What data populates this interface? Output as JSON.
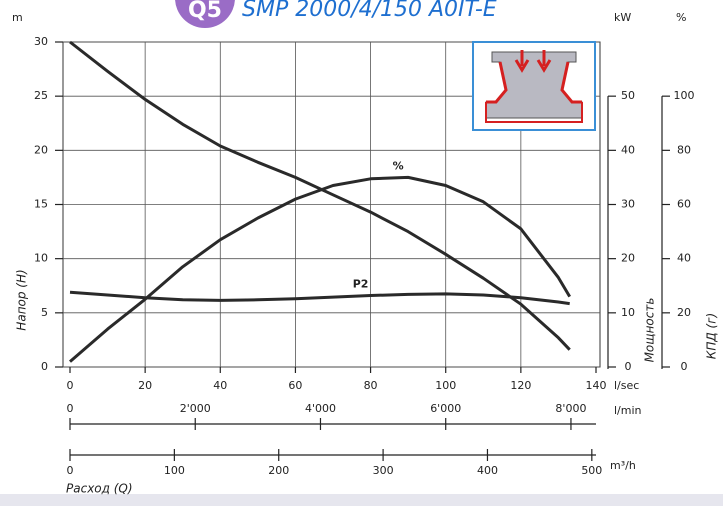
{
  "badge": "Q5",
  "chart_data": {
    "type": "line",
    "title": "SMP 2000/4/150 A0IT-E",
    "y_unit": "m",
    "y2_unit": "kW",
    "y3_unit": "%",
    "ylabel": "Напор (H)",
    "y2label": "Мощность",
    "y3label": "КПД (г)",
    "xlabel": "Расход (Q)",
    "x_unit": "l/sec",
    "x2_unit": "l/min",
    "x3_unit": "m³/h",
    "x": [
      0,
      10,
      20,
      30,
      40,
      50,
      60,
      70,
      80,
      90,
      100,
      110,
      120,
      130,
      133
    ],
    "xlim": [
      0,
      140
    ],
    "xticks": [
      0,
      20,
      40,
      60,
      80,
      100,
      120,
      140
    ],
    "x2lim": [
      0,
      8400
    ],
    "x2ticks": [
      0,
      {
        "value": 2000,
        "label": "2'000"
      },
      {
        "value": 4000,
        "label": "4'000"
      },
      {
        "value": 6000,
        "label": "6'000"
      },
      {
        "value": 8000,
        "label": "8'000"
      }
    ],
    "x3lim": [
      0,
      504
    ],
    "x3ticks": [
      0,
      100,
      200,
      300,
      400,
      500
    ],
    "ylim": [
      0,
      30
    ],
    "yticks": [
      0,
      5,
      10,
      15,
      20,
      25,
      30
    ],
    "y2lim": [
      0,
      60
    ],
    "y2ticks": [
      0,
      10,
      20,
      30,
      40,
      50
    ],
    "y3lim": [
      0,
      120
    ],
    "y3ticks": [
      0,
      20,
      40,
      60,
      80,
      100
    ],
    "grid": true,
    "series": [
      {
        "color": "#2a2a2a",
        "values": [
          30,
          27.3,
          24.7,
          22.4,
          20.4,
          18.9,
          17.5,
          15.9,
          14.3,
          12.5,
          10.4,
          8.2,
          5.8,
          2.7,
          1.6
        ]
      },
      {
        "name": "%",
        "axis": "y3",
        "color": "#2a2a2a",
        "values": [
          2,
          14,
          25,
          37,
          47,
          55,
          62,
          67,
          69.5,
          70,
          67,
          61,
          51,
          33,
          26
        ]
      },
      {
        "name": "P2",
        "axis": "y2",
        "color": "#2a2a2a",
        "values": [
          13.8,
          13.3,
          12.8,
          12.4,
          12.3,
          12.4,
          12.6,
          12.9,
          13.2,
          13.4,
          13.5,
          13.3,
          12.8,
          12.0,
          11.7
        ]
      }
    ]
  }
}
